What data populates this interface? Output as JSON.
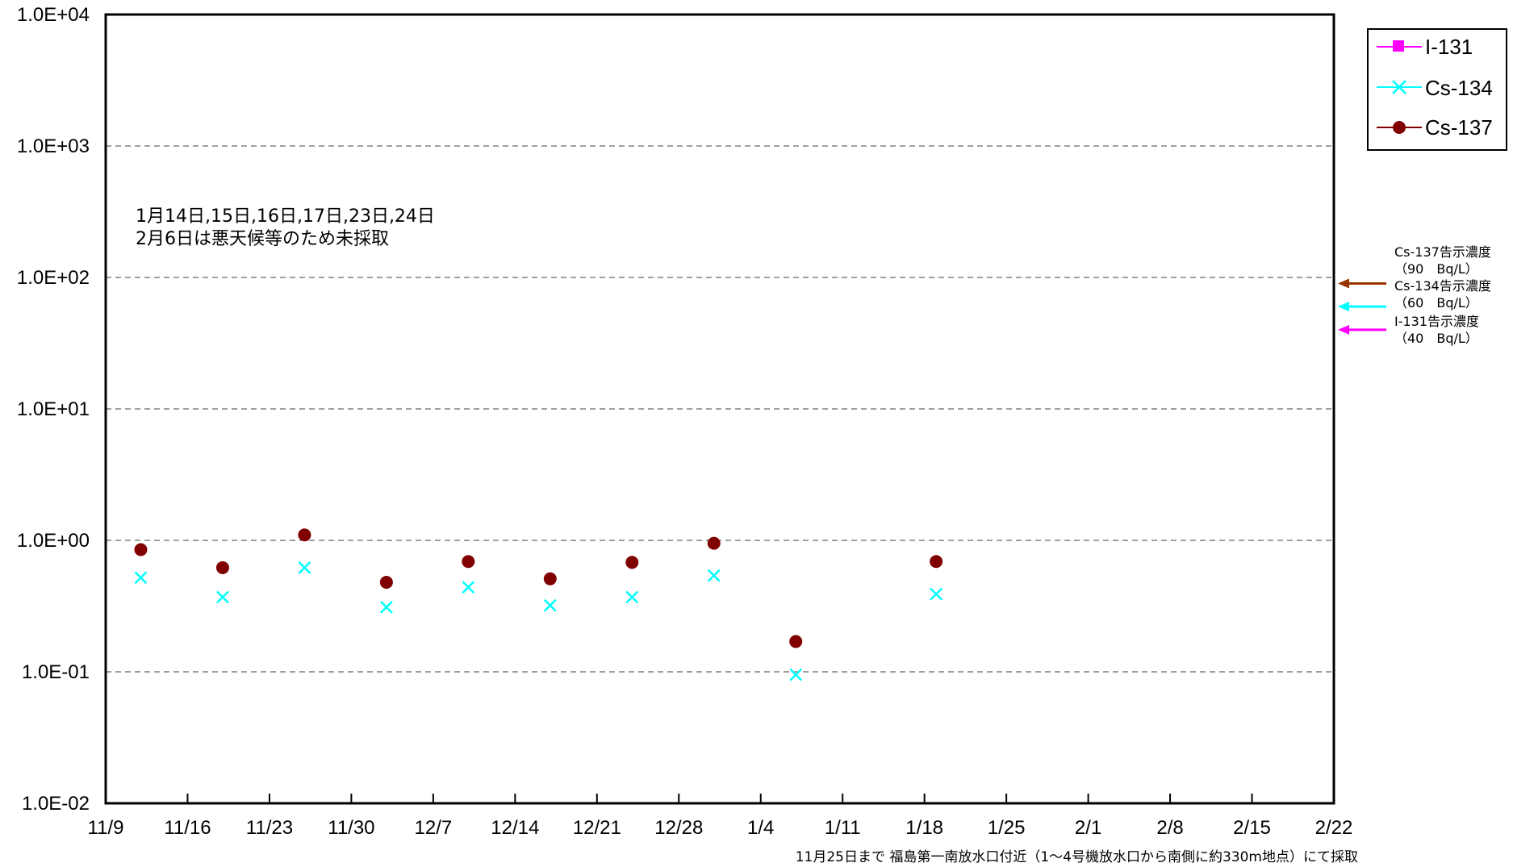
{
  "chart_data": {
    "type": "scatter",
    "yscale": "log",
    "ylim": [
      0.01,
      10000
    ],
    "y_tick_labels": [
      "1.0E-02",
      "1.0E-01",
      "1.0E+00",
      "1.0E+01",
      "1.0E+02",
      "1.0E+03",
      "1.0E+04"
    ],
    "x_tick_labels": [
      "11/9",
      "11/16",
      "11/23",
      "11/30",
      "12/7",
      "12/14",
      "12/21",
      "12/28",
      "1/4",
      "1/11",
      "1/18",
      "1/25",
      "2/1",
      "2/8",
      "2/15",
      "2/22"
    ],
    "x_start": "11/9",
    "x_end": "2/22",
    "grid": "horizontal dashed",
    "legend_position": "top-right",
    "series": [
      {
        "name": "I-131",
        "color": "#ff00ff",
        "marker": "square",
        "x": [],
        "values": []
      },
      {
        "name": "Cs-134",
        "color": "#00ffff",
        "marker": "x",
        "x": [
          "11/12",
          "11/19",
          "11/26",
          "12/3",
          "12/10",
          "12/17",
          "12/24",
          "12/31",
          "1/7",
          "1/19"
        ],
        "values": [
          0.52,
          0.37,
          0.62,
          0.31,
          0.44,
          0.32,
          0.37,
          0.54,
          0.095,
          0.39
        ]
      },
      {
        "name": "Cs-137",
        "color": "#800000",
        "marker": "circle",
        "x": [
          "11/12",
          "11/19",
          "11/26",
          "12/3",
          "12/10",
          "12/17",
          "12/24",
          "12/31",
          "1/7",
          "1/19"
        ],
        "values": [
          0.85,
          0.62,
          1.1,
          0.48,
          0.69,
          0.51,
          0.68,
          0.95,
          0.17,
          0.69
        ]
      }
    ],
    "annotation": [
      "1月14日,15日,16日,17日,23日,24日",
      "2月6日は悪天候等のため未採取"
    ],
    "limits": [
      {
        "label": "Cs-137告示濃度",
        "value_text": "（90　Bq/L）",
        "value": 90,
        "color": "#993300"
      },
      {
        "label": "Cs-134告示濃度",
        "value_text": "（60　Bq/L）",
        "value": 60,
        "color": "#00ffff"
      },
      {
        "label": "I-131告示濃度",
        "value_text": "（40　Bq/L）",
        "value": 40,
        "color": "#ff00ff"
      }
    ],
    "footnote": "11月25日まで 福島第一南放水口付近（1～4号機放水口から南側に約330m地点）にて採取"
  }
}
